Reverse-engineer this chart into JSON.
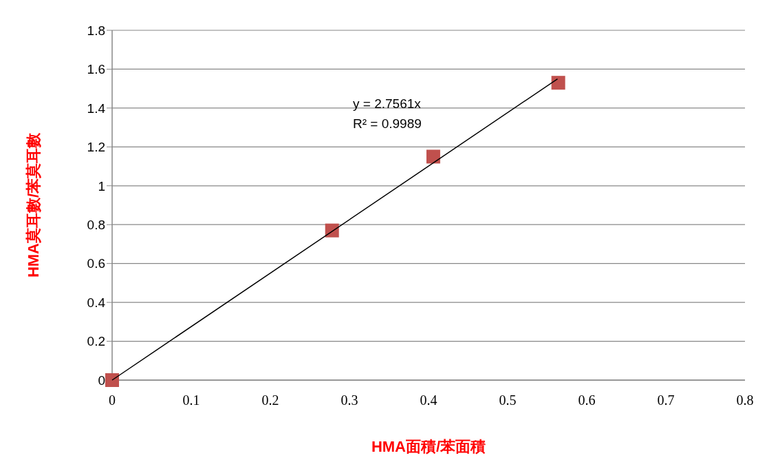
{
  "chart_data": {
    "type": "scatter",
    "xlabel": "HMA面積/苯面積",
    "ylabel": "HMA莫耳數/苯莫耳數",
    "xlim": [
      0,
      0.8
    ],
    "xticks": [
      0,
      0.1,
      0.2,
      0.3,
      0.4,
      0.5,
      0.6,
      0.7,
      0.8
    ],
    "ylim": [
      0,
      1.8
    ],
    "yticks": [
      0,
      0.2,
      0.4,
      0.6,
      0.8,
      1,
      1.2,
      1.4,
      1.6,
      1.8
    ],
    "grid": "y",
    "legend": false,
    "annotations": [
      "y = 2.7561x",
      "R² = 0.9989"
    ],
    "series": [
      {
        "color": "#c0504d",
        "marker": "square",
        "x": [
          0,
          0.278,
          0.406,
          0.564
        ],
        "values": [
          0,
          0.77,
          1.15,
          1.53
        ]
      },
      {
        "type": "line",
        "color": "#000000",
        "marker": "none",
        "x": [
          0,
          0.563
        ],
        "values": [
          0,
          1.55
        ]
      }
    ]
  }
}
